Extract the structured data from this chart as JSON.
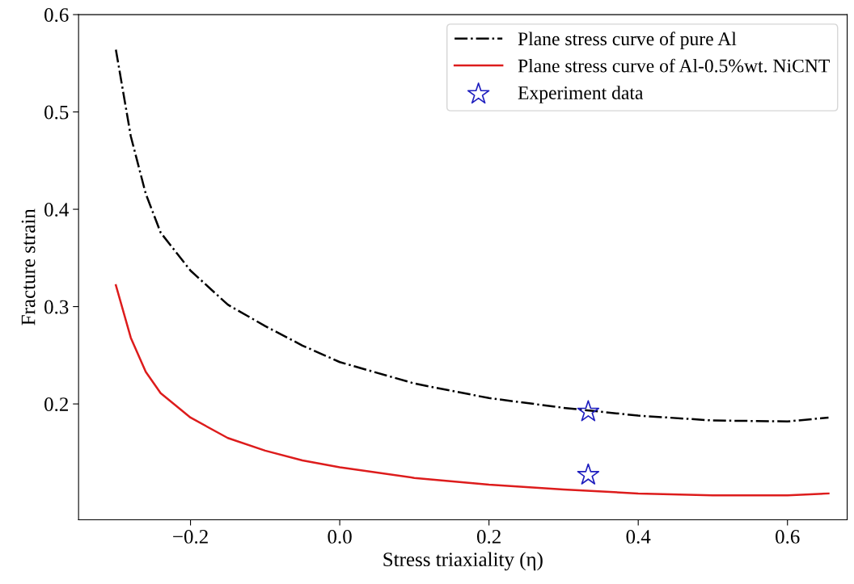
{
  "chart_data": {
    "type": "line",
    "xlabel": "Stress triaxiality (η)",
    "ylabel": "Fracture strain",
    "xlim": [
      -0.35,
      0.68
    ],
    "xticks": [
      {
        "value": -0.2,
        "label": "−0.2"
      },
      "0.0",
      0.2,
      0.4,
      0.6
    ],
    "ylim": [
      0.081,
      0.6
    ],
    "yticks": [
      0.2,
      0.3,
      0.4,
      0.5,
      0.6
    ],
    "grid": false,
    "legend": "top right",
    "series": [
      {
        "name": "Plane stress curve of pure Al",
        "color": "#000000",
        "line_style": "dashdot",
        "marker": "none",
        "x": [
          -0.3,
          -0.28,
          -0.26,
          -0.24,
          -0.2,
          -0.15,
          -0.1,
          -0.05,
          0,
          0.1,
          0.2,
          0.3,
          0.4,
          0.5,
          0.6,
          0.655
        ],
        "values": [
          0.564,
          0.475,
          0.416,
          0.376,
          0.337,
          0.302,
          0.28,
          0.26,
          0.243,
          0.221,
          0.206,
          0.196,
          0.188,
          0.183,
          0.182,
          0.186
        ]
      },
      {
        "name": "Plane stress curve of Al-0.5%wt. NiCNT",
        "color": "#dd1c1c",
        "line_style": "solid",
        "marker": "none",
        "x": [
          -0.3,
          -0.28,
          -0.26,
          -0.24,
          -0.2,
          -0.15,
          -0.1,
          -0.05,
          0,
          0.1,
          0.2,
          0.3,
          0.4,
          0.5,
          0.6,
          0.655
        ],
        "values": [
          0.322,
          0.268,
          0.233,
          0.211,
          0.186,
          0.165,
          0.152,
          0.142,
          0.135,
          0.124,
          0.117,
          0.112,
          0.108,
          0.106,
          0.106,
          0.108
        ]
      },
      {
        "name": "Experiment data",
        "type": "scatter",
        "color": "#1f1fbf",
        "marker": "star",
        "x": [
          0.333,
          0.333
        ],
        "values": [
          0.192,
          0.127
        ]
      }
    ]
  }
}
